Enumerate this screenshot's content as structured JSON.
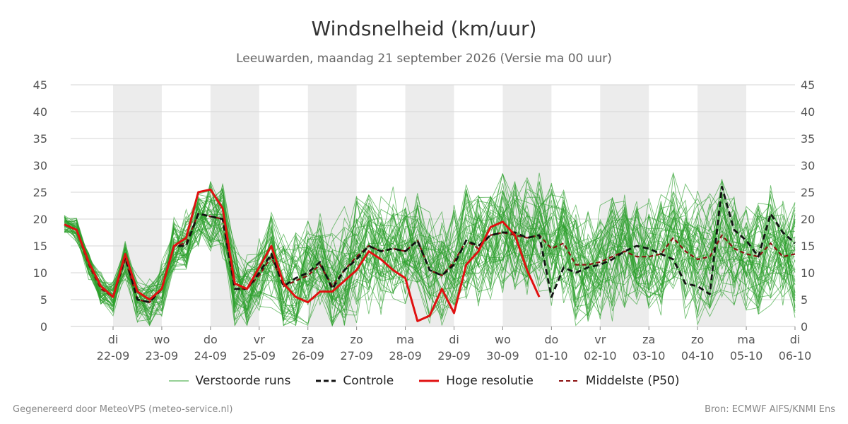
{
  "title": "Windsnelheid (km/uur)",
  "subtitle": "Leeuwarden, maandag 21 september 2026 (Versie ma 00 uur)",
  "footer": {
    "left": "Gegenereerd door MeteoVPS (meteo-service.nl)",
    "right": "Bron: ECMWF AIFS/KNMI Ens"
  },
  "legend": [
    {
      "label": "Verstoorde runs",
      "color": "#2ca02c",
      "style": "thin"
    },
    {
      "label": "Controle",
      "color": "#111111",
      "style": "dashed"
    },
    {
      "label": "Hoge resolutie",
      "color": "#e01010",
      "style": "solid"
    },
    {
      "label": "Middelste (P50)",
      "color": "#8b1010",
      "style": "dashed"
    }
  ],
  "chart_data": {
    "type": "line",
    "title": "Windsnelheid (km/uur)",
    "ylim": [
      0,
      45
    ],
    "yticks": [
      0,
      5,
      10,
      15,
      20,
      25,
      30,
      35,
      40,
      45
    ],
    "x_unit": "days after 21-09 00:00",
    "xlim": [
      0,
      15
    ],
    "xticks": [
      {
        "x": 1,
        "day": "di",
        "date": "22-09"
      },
      {
        "x": 2,
        "day": "wo",
        "date": "23-09"
      },
      {
        "x": 3,
        "day": "do",
        "date": "24-09"
      },
      {
        "x": 4,
        "day": "vr",
        "date": "25-09"
      },
      {
        "x": 5,
        "day": "za",
        "date": "26-09"
      },
      {
        "x": 6,
        "day": "zo",
        "date": "27-09"
      },
      {
        "x": 7,
        "day": "ma",
        "date": "28-09"
      },
      {
        "x": 8,
        "day": "di",
        "date": "29-09"
      },
      {
        "x": 9,
        "day": "wo",
        "date": "30-09"
      },
      {
        "x": 10,
        "day": "do",
        "date": "01-10"
      },
      {
        "x": 11,
        "day": "vr",
        "date": "02-10"
      },
      {
        "x": 12,
        "day": "za",
        "date": "03-10"
      },
      {
        "x": 13,
        "day": "zo",
        "date": "04-10"
      },
      {
        "x": 14,
        "day": "ma",
        "date": "05-10"
      },
      {
        "x": 15,
        "day": "di",
        "date": "06-10"
      }
    ],
    "shaded_days": [
      1,
      3,
      5,
      7,
      9,
      11,
      13
    ],
    "grid": true,
    "ensemble": {
      "name": "Verstoorde runs",
      "color": "#2ca02c",
      "members": 50,
      "range_note": "individual perturbed runs (approximated)"
    },
    "series": [
      {
        "name": "Hoge resolutie",
        "color": "#e01010",
        "x": [
          0,
          0.25,
          0.5,
          0.75,
          1.0,
          1.25,
          1.5,
          1.75,
          2.0,
          2.25,
          2.5,
          2.75,
          3.0,
          3.25,
          3.5,
          3.75,
          4.0,
          4.25,
          4.5,
          4.75,
          5.0,
          5.25,
          5.5,
          5.75,
          6.0,
          6.25,
          6.5,
          6.75,
          7.0,
          7.25,
          7.5,
          7.75,
          8.0,
          8.25,
          8.5,
          8.75,
          9.0,
          9.25,
          9.5,
          9.75,
          10.0
        ],
        "values": [
          19,
          18,
          12,
          7.5,
          5.5,
          13.5,
          6.5,
          5,
          7,
          15,
          16.5,
          25,
          25.5,
          22,
          8,
          7,
          11,
          15,
          8,
          5.5,
          4.5,
          6.5,
          6.5,
          8.5,
          10.5,
          14,
          12.5,
          10.5,
          9,
          1,
          2,
          7,
          2.5,
          11.5,
          14,
          18.5,
          19.5,
          17,
          10.5,
          5.5,
          null
        ]
      },
      {
        "name": "Controle",
        "color": "#111111",
        "x": [
          0,
          0.25,
          0.5,
          0.75,
          1.0,
          1.25,
          1.5,
          1.75,
          2.0,
          2.25,
          2.5,
          2.75,
          3.0,
          3.25,
          3.5,
          3.75,
          4.0,
          4.25,
          4.5,
          4.75,
          5.0,
          5.25,
          5.5,
          5.75,
          6.0,
          6.25,
          6.5,
          6.75,
          7.0,
          7.25,
          7.5,
          7.75,
          8.0,
          8.25,
          8.5,
          8.75,
          9.0,
          9.25,
          9.5,
          9.75,
          10.0,
          10.25,
          10.5,
          10.75,
          11.0,
          11.25,
          11.5,
          11.75,
          12.0,
          12.25,
          12.5,
          12.75,
          13.0,
          13.25,
          13.5,
          13.75,
          14.0,
          14.25,
          14.5,
          14.75,
          15.0
        ],
        "values": [
          19,
          18,
          12,
          7.5,
          5.5,
          13,
          5,
          4.5,
          7,
          15,
          15,
          21,
          20.5,
          20,
          7,
          7,
          10,
          13.5,
          7.5,
          9,
          10,
          12,
          7,
          10.5,
          12.5,
          15,
          14,
          14.5,
          14,
          16,
          10.5,
          9.5,
          11.5,
          16,
          15,
          17,
          17.5,
          17.5,
          16.5,
          17,
          5.5,
          11,
          10,
          11,
          11.5,
          12.5,
          14,
          15,
          14.5,
          13.5,
          12.5,
          8,
          7.5,
          6,
          26,
          18,
          16,
          13,
          21,
          17.5,
          15.5
        ]
      },
      {
        "name": "Middelste (P50)",
        "color": "#8b1010",
        "x": [
          0,
          0.25,
          0.5,
          0.75,
          1.0,
          1.25,
          1.5,
          1.75,
          2.0,
          2.25,
          2.5,
          2.75,
          3.0,
          3.25,
          3.5,
          3.75,
          4.0,
          4.25,
          4.5,
          4.75,
          5.0,
          5.25,
          5.5,
          5.75,
          6.0,
          6.25,
          6.5,
          6.75,
          7.0,
          7.25,
          7.5,
          7.75,
          8.0,
          8.25,
          8.5,
          8.75,
          9.0,
          9.25,
          9.5,
          9.75,
          10.0,
          10.25,
          10.5,
          10.75,
          11.0,
          11.25,
          11.5,
          11.75,
          12.0,
          12.25,
          12.5,
          12.75,
          13.0,
          13.25,
          13.5,
          13.75,
          14.0,
          14.25,
          14.5,
          14.75,
          15.0
        ],
        "values": [
          19,
          18,
          11.5,
          7,
          5.5,
          12.5,
          5,
          4.5,
          7,
          15,
          15.5,
          21,
          20.5,
          20,
          7,
          7,
          9.5,
          13,
          7.5,
          8.5,
          9.5,
          11.5,
          7.5,
          10.5,
          13,
          15,
          14,
          14.5,
          14,
          16,
          10.5,
          9.5,
          12,
          16,
          14.5,
          17,
          17.5,
          17,
          16.5,
          17,
          14.5,
          15.5,
          11.5,
          11.5,
          12,
          13,
          14,
          13,
          13,
          13.5,
          16.5,
          14,
          12.5,
          13,
          17,
          14.5,
          13.5,
          13,
          15.5,
          13,
          13.5
        ]
      }
    ]
  }
}
